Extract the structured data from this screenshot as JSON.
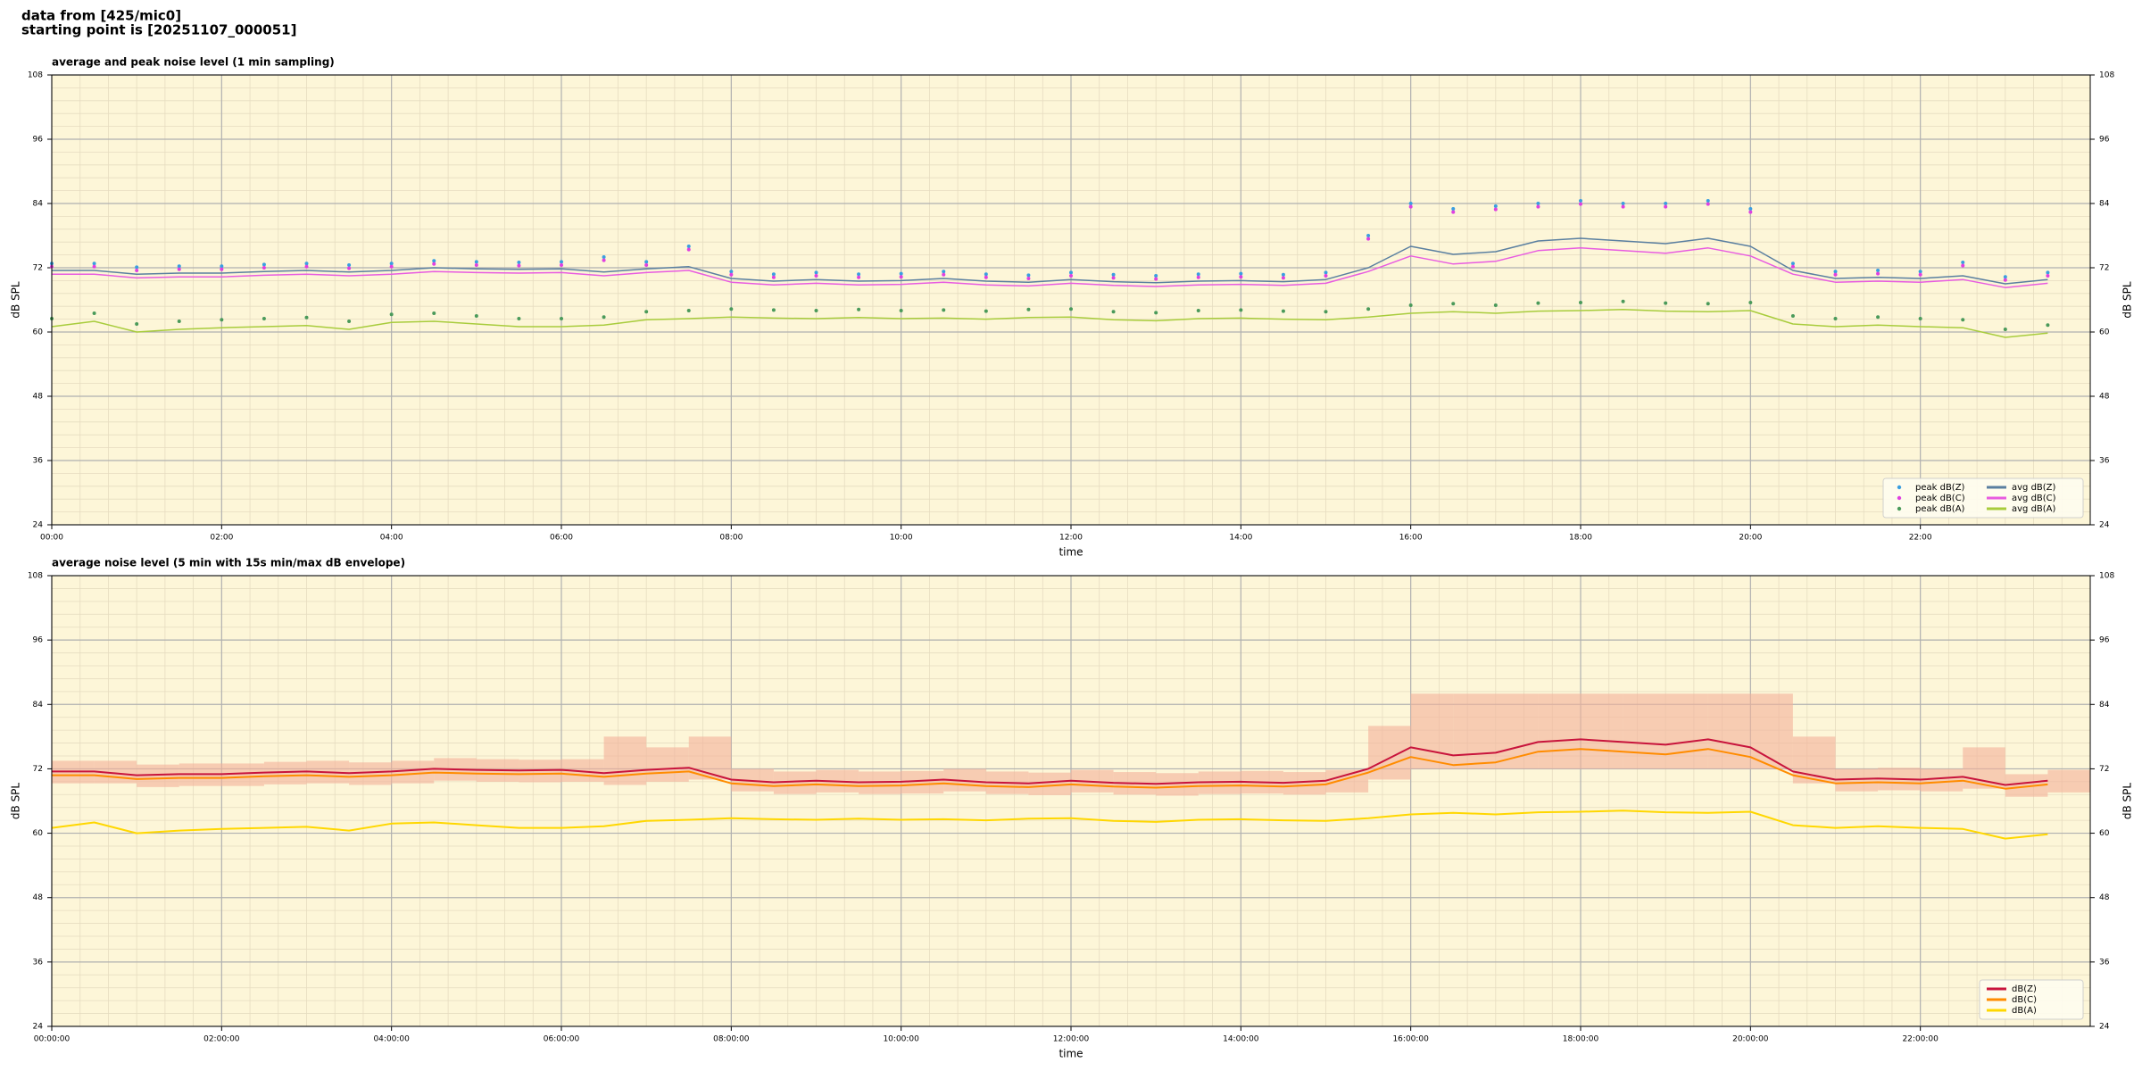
{
  "header": {
    "line1": "data from [425/mic0]",
    "line2": "starting point is [20251107_000051]"
  },
  "chart_data": [
    {
      "type": "line",
      "title": "average and peak noise level (1 min sampling)",
      "xlabel": "time",
      "ylabel": "dB SPL",
      "x": [
        0,
        0.5,
        1,
        1.5,
        2,
        2.5,
        3,
        3.5,
        4,
        4.5,
        5,
        5.5,
        6,
        6.5,
        7,
        7.5,
        8,
        8.5,
        9,
        9.5,
        10,
        10.5,
        11,
        11.5,
        12,
        12.5,
        13,
        13.5,
        14,
        14.5,
        15,
        15.5,
        16,
        16.5,
        17,
        17.5,
        18,
        18.5,
        19,
        19.5,
        20,
        20.5,
        21,
        21.5,
        22,
        22.5,
        23,
        23.5
      ],
      "xlim": [
        0,
        24
      ],
      "xticks": [
        {
          "value": 0,
          "label": "00:00"
        },
        {
          "value": 2,
          "label": "02:00"
        },
        {
          "value": 4,
          "label": "04:00"
        },
        {
          "value": 6,
          "label": "06:00"
        },
        {
          "value": 8,
          "label": "08:00"
        },
        {
          "value": 10,
          "label": "10:00"
        },
        {
          "value": 12,
          "label": "12:00"
        },
        {
          "value": 14,
          "label": "14:00"
        },
        {
          "value": 16,
          "label": "16:00"
        },
        {
          "value": 18,
          "label": "18:00"
        },
        {
          "value": 20,
          "label": "20:00"
        },
        {
          "value": 22,
          "label": "22:00"
        }
      ],
      "ylim": [
        24,
        108
      ],
      "yticks": [
        24,
        36,
        48,
        60,
        72,
        84,
        96,
        108
      ],
      "grid": true,
      "minor_grid": true,
      "mirror_y_axis": true,
      "background": "#fdf6d8",
      "legend": "lower right",
      "legend_columns": 2,
      "series": [
        {
          "name": "peak dB(Z)",
          "style": "dots",
          "color": "#3a9ee0",
          "values": [
            72.8,
            72.8,
            72.1,
            72.3,
            72.3,
            72.6,
            72.8,
            72.5,
            72.8,
            73.3,
            73.1,
            73,
            73.1,
            74,
            73.1,
            76,
            71.3,
            70.8,
            71.1,
            70.8,
            70.9,
            71.3,
            70.8,
            70.6,
            71.1,
            70.7,
            70.5,
            70.8,
            70.9,
            70.7,
            71.1,
            78,
            84,
            83,
            83.5,
            84,
            84.5,
            84,
            84,
            84.5,
            83,
            72.8,
            71.3,
            71.5,
            71.3,
            73,
            70.3,
            71.1
          ]
        },
        {
          "name": "peak dB(C)",
          "style": "dots",
          "color": "#e040e0",
          "values": [
            72.2,
            72.2,
            71.5,
            71.7,
            71.7,
            72,
            72.2,
            71.9,
            72.2,
            72.7,
            72.5,
            72.4,
            72.5,
            73.4,
            72.5,
            75.4,
            70.7,
            70.2,
            70.5,
            70.2,
            70.3,
            70.7,
            70.2,
            70,
            70.5,
            70.1,
            69.9,
            70.2,
            70.3,
            70.1,
            70.5,
            77.4,
            83.4,
            82.4,
            82.9,
            83.4,
            83.9,
            83.4,
            83.4,
            83.9,
            82.4,
            72.2,
            70.7,
            70.9,
            70.7,
            72.4,
            69.7,
            70.5
          ]
        },
        {
          "name": "peak dB(A)",
          "style": "dots",
          "color": "#4a9a5a",
          "values": [
            62.5,
            63.5,
            61.5,
            62,
            62.3,
            62.5,
            62.7,
            62,
            63.3,
            63.5,
            63,
            62.5,
            62.5,
            62.8,
            63.8,
            64,
            64.3,
            64.1,
            64,
            64.2,
            64,
            64.1,
            63.9,
            64.2,
            64.3,
            63.8,
            63.6,
            64,
            64.1,
            63.9,
            63.8,
            64.3,
            65,
            65.3,
            65,
            65.4,
            65.5,
            65.7,
            65.4,
            65.3,
            65.5,
            63,
            62.5,
            62.8,
            62.5,
            62.3,
            60.5,
            61.3
          ]
        },
        {
          "name": "avg dB(Z)",
          "style": "line",
          "color": "#5a7fa0",
          "values": [
            71.5,
            71.5,
            70.8,
            71,
            71,
            71.3,
            71.5,
            71.2,
            71.5,
            72,
            71.8,
            71.7,
            71.8,
            71.2,
            71.8,
            72.2,
            70,
            69.5,
            69.8,
            69.5,
            69.6,
            70,
            69.5,
            69.3,
            69.8,
            69.4,
            69.2,
            69.5,
            69.6,
            69.4,
            69.8,
            72,
            76,
            74.5,
            75,
            77,
            77.5,
            77,
            76.5,
            77.5,
            76,
            71.5,
            70,
            70.2,
            70,
            70.5,
            69,
            69.8
          ]
        },
        {
          "name": "avg dB(C)",
          "style": "line",
          "color": "#e85ce0",
          "values": [
            70.8,
            70.8,
            70.1,
            70.3,
            70.3,
            70.6,
            70.8,
            70.5,
            70.8,
            71.3,
            71.1,
            71,
            71.1,
            70.5,
            71.1,
            71.5,
            69.3,
            68.8,
            69.1,
            68.8,
            68.9,
            69.3,
            68.8,
            68.6,
            69.1,
            68.7,
            68.5,
            68.8,
            68.9,
            68.7,
            69.1,
            71.3,
            74.2,
            72.7,
            73.2,
            75.2,
            75.7,
            75.2,
            74.7,
            75.7,
            74.2,
            70.8,
            69.3,
            69.5,
            69.3,
            69.8,
            68.3,
            69.1
          ]
        },
        {
          "name": "avg dB(A)",
          "style": "line",
          "color": "#a8cc3c",
          "values": [
            61,
            62,
            60,
            60.5,
            60.8,
            61,
            61.2,
            60.5,
            61.8,
            62,
            61.5,
            61,
            61,
            61.3,
            62.3,
            62.5,
            62.8,
            62.6,
            62.5,
            62.7,
            62.5,
            62.6,
            62.4,
            62.7,
            62.8,
            62.3,
            62.1,
            62.5,
            62.6,
            62.4,
            62.3,
            62.8,
            63.5,
            63.8,
            63.5,
            63.9,
            64,
            64.2,
            63.9,
            63.8,
            64,
            61.5,
            61,
            61.3,
            61,
            60.8,
            59,
            59.8
          ]
        }
      ]
    },
    {
      "type": "line",
      "title": "average noise level (5 min with 15s min/max dB envelope)",
      "xlabel": "time",
      "ylabel": "dB SPL",
      "x": [
        0,
        0.5,
        1,
        1.5,
        2,
        2.5,
        3,
        3.5,
        4,
        4.5,
        5,
        5.5,
        6,
        6.5,
        7,
        7.5,
        8,
        8.5,
        9,
        9.5,
        10,
        10.5,
        11,
        11.5,
        12,
        12.5,
        13,
        13.5,
        14,
        14.5,
        15,
        15.5,
        16,
        16.5,
        17,
        17.5,
        18,
        18.5,
        19,
        19.5,
        20,
        20.5,
        21,
        21.5,
        22,
        22.5,
        23,
        23.5
      ],
      "xlim": [
        0,
        24
      ],
      "xticks": [
        {
          "value": 0,
          "label": "00:00:00"
        },
        {
          "value": 2,
          "label": "02:00:00"
        },
        {
          "value": 4,
          "label": "04:00:00"
        },
        {
          "value": 6,
          "label": "06:00:00"
        },
        {
          "value": 8,
          "label": "08:00:00"
        },
        {
          "value": 10,
          "label": "10:00:00"
        },
        {
          "value": 12,
          "label": "12:00:00"
        },
        {
          "value": 14,
          "label": "14:00:00"
        },
        {
          "value": 16,
          "label": "16:00:00"
        },
        {
          "value": 18,
          "label": "18:00:00"
        },
        {
          "value": 20,
          "label": "20:00:00"
        },
        {
          "value": 22,
          "label": "22:00:00"
        }
      ],
      "ylim": [
        24,
        108
      ],
      "yticks": [
        24,
        36,
        48,
        60,
        72,
        84,
        96,
        108
      ],
      "grid": true,
      "minor_grid": true,
      "mirror_y_axis": true,
      "background": "#fdf6d8",
      "legend": "lower right",
      "legend_columns": 1,
      "envelope": {
        "color": "#f4b09a",
        "lower": [
          69.3,
          69.3,
          68.6,
          68.8,
          68.8,
          69.1,
          69.3,
          69,
          69.3,
          69.8,
          69.6,
          69.5,
          69.6,
          69,
          69.6,
          70,
          67.8,
          67.3,
          67.6,
          67.3,
          67.4,
          67.8,
          67.3,
          67.1,
          67.6,
          67.2,
          67,
          67.3,
          67.4,
          67.2,
          67.6,
          70,
          72,
          72,
          72,
          72,
          72,
          72,
          72,
          72,
          72,
          69.3,
          67.8,
          68,
          67.8,
          68.3,
          66.8,
          67.6
        ],
        "upper": [
          73.5,
          73.5,
          72.8,
          73,
          73,
          73.3,
          73.5,
          73.2,
          73.5,
          74,
          73.8,
          73.7,
          73.8,
          78,
          76,
          78,
          72,
          71.5,
          71.8,
          71.5,
          71.6,
          72,
          71.5,
          71.3,
          71.8,
          71.4,
          71.2,
          71.5,
          71.6,
          71.4,
          71.8,
          80,
          86,
          86,
          86,
          86,
          86,
          86,
          86,
          86,
          86,
          78,
          72,
          72.2,
          72,
          76,
          71,
          71.8
        ]
      },
      "series": [
        {
          "name": "dB(Z)",
          "style": "line",
          "color": "#c8143c",
          "values": [
            71.5,
            71.5,
            70.8,
            71,
            71,
            71.3,
            71.5,
            71.2,
            71.5,
            72,
            71.8,
            71.7,
            71.8,
            71.2,
            71.8,
            72.2,
            70,
            69.5,
            69.8,
            69.5,
            69.6,
            70,
            69.5,
            69.3,
            69.8,
            69.4,
            69.2,
            69.5,
            69.6,
            69.4,
            69.8,
            72,
            76,
            74.5,
            75,
            77,
            77.5,
            77,
            76.5,
            77.5,
            76,
            71.5,
            70,
            70.2,
            70,
            70.5,
            69,
            69.8
          ]
        },
        {
          "name": "dB(C)",
          "style": "line",
          "color": "#ff8c00",
          "values": [
            70.8,
            70.8,
            70.1,
            70.3,
            70.3,
            70.6,
            70.8,
            70.5,
            70.8,
            71.3,
            71.1,
            71,
            71.1,
            70.5,
            71.1,
            71.5,
            69.3,
            68.8,
            69.1,
            68.8,
            68.9,
            69.3,
            68.8,
            68.6,
            69.1,
            68.7,
            68.5,
            68.8,
            68.9,
            68.7,
            69.1,
            71.3,
            74.2,
            72.7,
            73.2,
            75.2,
            75.7,
            75.2,
            74.7,
            75.7,
            74.2,
            70.8,
            69.3,
            69.5,
            69.3,
            69.8,
            68.3,
            69.1
          ]
        },
        {
          "name": "dB(A)",
          "style": "line",
          "color": "#ffd700",
          "values": [
            61,
            62,
            60,
            60.5,
            60.8,
            61,
            61.2,
            60.5,
            61.8,
            62,
            61.5,
            61,
            61,
            61.3,
            62.3,
            62.5,
            62.8,
            62.6,
            62.5,
            62.7,
            62.5,
            62.6,
            62.4,
            62.7,
            62.8,
            62.3,
            62.1,
            62.5,
            62.6,
            62.4,
            62.3,
            62.8,
            63.5,
            63.8,
            63.5,
            63.9,
            64,
            64.2,
            63.9,
            63.8,
            64,
            61.5,
            61,
            61.3,
            61,
            60.8,
            59,
            59.8
          ]
        }
      ]
    }
  ]
}
